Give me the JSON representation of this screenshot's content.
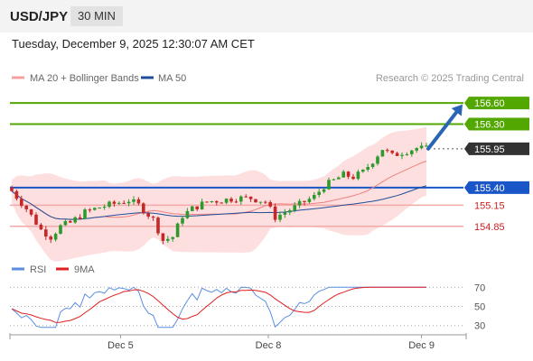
{
  "header": {
    "symbol": "USD/JPY",
    "interval": "30 MIN"
  },
  "timestamp": "Tuesday, December 9, 2025 12:30:07 AM CET",
  "legend": {
    "ma20_bb": "MA 20 + Bollinger Bands",
    "ma50": "MA 50",
    "credit": "Research © 2025 Trading Central",
    "rsi": "RSI",
    "rsi_ma": "9MA"
  },
  "colors": {
    "bullish_candle": "#2e9a2e",
    "bearish_candle": "#c62828",
    "bollinger_band": "#fcd4d4",
    "ma20": "#f08080",
    "ma50": "#1f4e99",
    "target_line": "#52a700",
    "pivot_line": "#1a56c8",
    "support_line": "#f4a8a8",
    "support_text": "#cc2222",
    "current_price_label": "#333333",
    "arrow": "#2a64b4",
    "rsi_line": "#5b8ee0",
    "rsi_ma_line": "#e02020"
  },
  "chart_data": [
    {
      "type": "candlestick",
      "price_range": [
        154.54,
        156.78
      ],
      "x_ticks": [
        {
          "label": "Dec 5",
          "index": 22.3
        },
        {
          "label": "Dec 8",
          "index": 52.6
        },
        {
          "label": "Dec 9",
          "index": 84.0
        }
      ],
      "levels": [
        {
          "value": "156.60",
          "kind": "target",
          "tag": true
        },
        {
          "value": "156.30",
          "kind": "target",
          "tag": true
        },
        {
          "value": "155.40",
          "kind": "pivot",
          "tag": true
        },
        {
          "value": "155.15",
          "kind": "support",
          "tag": false
        },
        {
          "value": "154.85",
          "kind": "support",
          "tag": false
        }
      ],
      "current_price": "155.95",
      "arrow": {
        "from_price": 155.95,
        "to_price": 156.58
      },
      "series": [
        {
          "name": "MA 20 + Bollinger Bands",
          "kind": "ma20_bb"
        },
        {
          "name": "MA 50",
          "kind": "ma50"
        }
      ],
      "waypoints": [
        [
          0,
          155.35
        ],
        [
          3,
          155.1
        ],
        [
          6,
          154.8
        ],
        [
          8,
          154.7
        ],
        [
          10,
          154.85
        ],
        [
          12,
          154.9
        ],
        [
          15,
          155.05
        ],
        [
          18,
          155.12
        ],
        [
          21,
          155.17
        ],
        [
          24,
          155.22
        ],
        [
          26,
          155.15
        ],
        [
          29,
          154.95
        ],
        [
          31,
          154.65
        ],
        [
          33,
          154.7
        ],
        [
          35,
          155.0
        ],
        [
          37,
          155.1
        ],
        [
          40,
          155.2
        ],
        [
          43,
          155.22
        ],
        [
          46,
          155.25
        ],
        [
          49,
          155.25
        ],
        [
          52,
          155.2
        ],
        [
          54,
          154.98
        ],
        [
          56,
          155.05
        ],
        [
          58,
          155.12
        ],
        [
          60,
          155.2
        ],
        [
          62,
          155.27
        ],
        [
          64,
          155.42
        ],
        [
          66,
          155.5
        ],
        [
          68,
          155.58
        ],
        [
          70,
          155.55
        ],
        [
          72,
          155.62
        ],
        [
          74,
          155.78
        ],
        [
          76,
          155.95
        ],
        [
          78,
          155.85
        ],
        [
          80,
          155.9
        ],
        [
          83,
          155.96
        ],
        [
          85,
          155.95
        ]
      ],
      "candle_count": 86
    },
    {
      "type": "line",
      "name": "RSI",
      "y_ticks": [
        70,
        50,
        30
      ],
      "ylim": [
        25,
        75
      ],
      "series": [
        {
          "name": "RSI",
          "kind": "rsi"
        },
        {
          "name": "9MA",
          "kind": "rsi_ma"
        }
      ]
    }
  ]
}
